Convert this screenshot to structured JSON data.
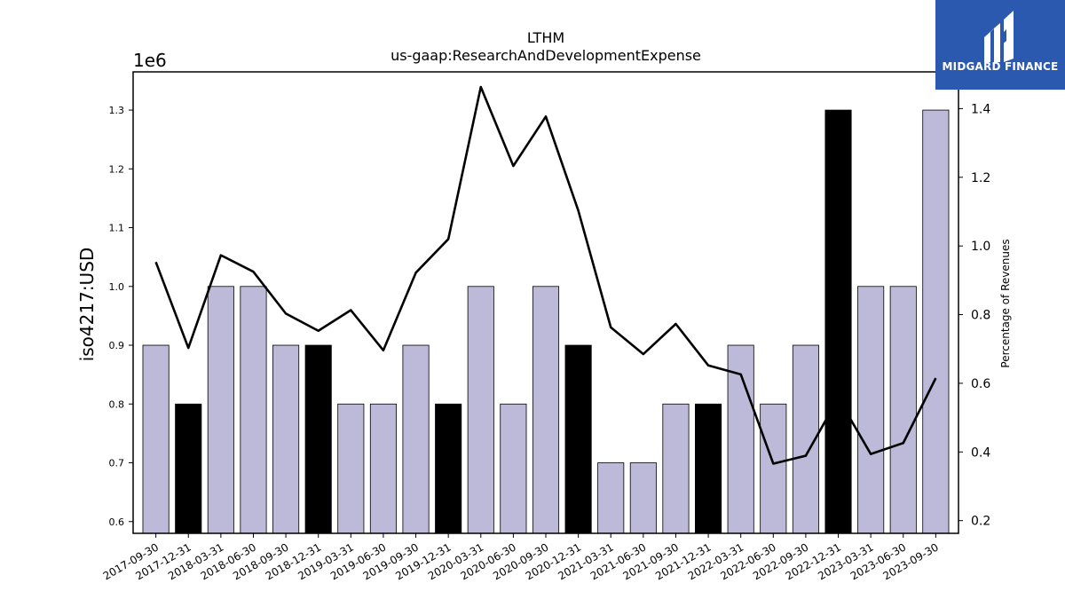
{
  "chart_data": {
    "type": "bar",
    "title": "LTHM",
    "subtitle": "us-gaap:ResearchAndDevelopmentExpense",
    "ylabel": "iso4217:USD",
    "y_offset_label": "1e6",
    "y2label": "Percentage of Revenues",
    "ylim": [
      580000,
      1365000
    ],
    "y2lim": [
      0.163,
      1.507
    ],
    "yticks": [
      "0.6",
      "0.7",
      "0.8",
      "0.9",
      "1.0",
      "1.1",
      "1.2",
      "1.3"
    ],
    "y2ticks": [
      "0.2",
      "0.4",
      "0.6",
      "0.8",
      "1.0",
      "1.2",
      "1.4"
    ],
    "grid": false,
    "categories": [
      "2017-09-30",
      "2017-12-31",
      "2018-03-31",
      "2018-06-30",
      "2018-09-30",
      "2018-12-31",
      "2019-03-31",
      "2019-06-30",
      "2019-09-30",
      "2019-12-31",
      "2020-03-31",
      "2020-06-30",
      "2020-09-30",
      "2020-12-31",
      "2021-03-31",
      "2021-06-30",
      "2021-09-30",
      "2021-12-31",
      "2022-03-31",
      "2022-06-30",
      "2022-09-30",
      "2022-12-31",
      "2023-03-31",
      "2023-06-30",
      "2023-09-30"
    ],
    "series": [
      {
        "kind": "bar",
        "axis": "left",
        "values": [
          900000,
          800000,
          1000000,
          1000000,
          900000,
          900000,
          800000,
          800000,
          900000,
          800000,
          1000000,
          800000,
          1000000,
          900000,
          700000,
          700000,
          800000,
          800000,
          900000,
          800000,
          900000,
          1300000,
          1000000,
          1000000,
          1300000
        ],
        "highlight": [
          false,
          true,
          false,
          false,
          false,
          true,
          false,
          false,
          false,
          true,
          false,
          false,
          false,
          true,
          false,
          false,
          false,
          true,
          false,
          false,
          false,
          true,
          false,
          false,
          false
        ]
      },
      {
        "kind": "line",
        "axis": "right",
        "values": [
          0.953,
          0.703,
          0.973,
          0.925,
          0.803,
          0.753,
          0.813,
          0.696,
          0.922,
          1.02,
          1.463,
          1.233,
          1.377,
          1.103,
          0.763,
          0.685,
          0.773,
          0.652,
          0.626,
          0.366,
          0.389,
          0.557,
          0.394,
          0.426,
          0.615
        ]
      }
    ],
    "colors": {
      "bar": "#bcb9d9",
      "bar_highlight": "#000000",
      "line": "#000000"
    }
  },
  "logo": {
    "text": "MIDGARD FINANCE",
    "bg": "#2b59b0"
  }
}
